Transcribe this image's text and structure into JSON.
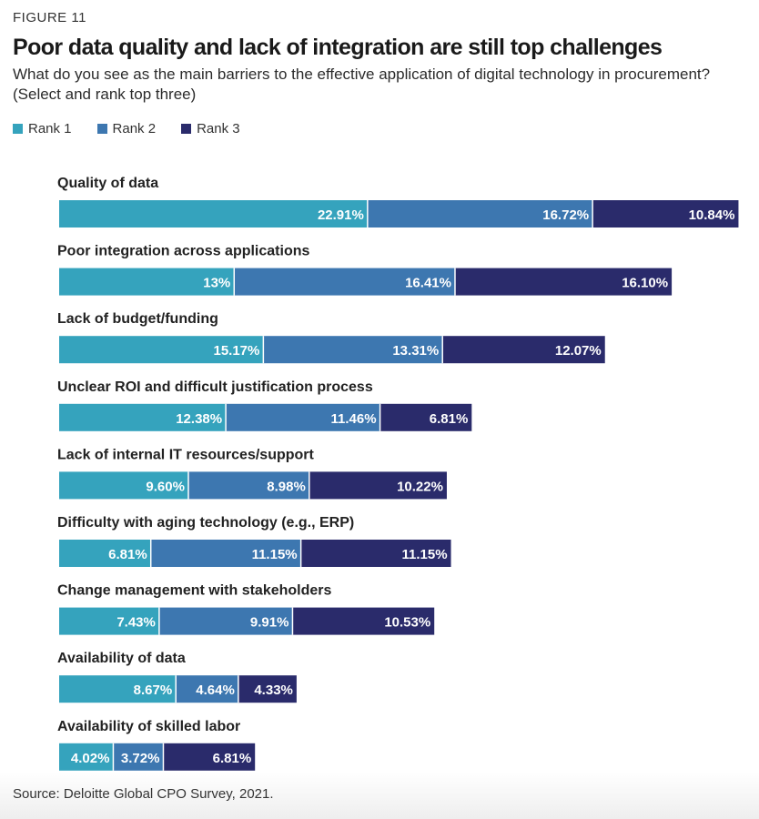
{
  "figure_label": "FIGURE 11",
  "title": "Poor data quality and lack of integration are still top challenges",
  "subtitle": "What do you see as the main barriers to the effective application of digital technology in procurement? (Select and rank top three)",
  "source": "Source: Deloitte Global CPO Survey, 2021.",
  "colors": {
    "rank1": "#35a3bd",
    "rank2": "#3d77b0",
    "rank3": "#2a2b6b"
  },
  "chart_data": {
    "type": "bar",
    "orientation": "horizontal",
    "stacked": true,
    "title": "Poor data quality and lack of integration are still top challenges",
    "xlabel": "",
    "ylabel": "",
    "legend_position": "top-left",
    "grid": false,
    "categories": [
      "Quality of data",
      "Poor integration across applications",
      "Lack of budget/funding",
      "Unclear ROI and difficult justification process",
      "Lack of internal IT resources/support",
      "Difficulty with aging technology (e.g., ERP)",
      "Change management with stakeholders",
      "Availability of data",
      "Availability of skilled labor"
    ],
    "series": [
      {
        "name": "Rank 1",
        "values": [
          22.91,
          13,
          15.17,
          12.38,
          9.6,
          6.81,
          7.43,
          8.67,
          4.02
        ],
        "labels": [
          "22.91%",
          "13%",
          "15.17%",
          "12.38%",
          "9.60%",
          "6.81%",
          "7.43%",
          "8.67%",
          "4.02%"
        ]
      },
      {
        "name": "Rank 2",
        "values": [
          16.72,
          16.41,
          13.31,
          11.46,
          8.98,
          11.15,
          9.91,
          4.64,
          3.72
        ],
        "labels": [
          "16.72%",
          "16.41%",
          "13.31%",
          "11.46%",
          "8.98%",
          "11.15%",
          "9.91%",
          "4.64%",
          "3.72%"
        ]
      },
      {
        "name": "Rank 3",
        "values": [
          10.84,
          16.1,
          12.07,
          6.81,
          10.22,
          11.15,
          10.53,
          4.33,
          6.81
        ],
        "labels": [
          "10.84%",
          "16.10%",
          "12.07%",
          "6.81%",
          "10.22%",
          "11.15%",
          "10.53%",
          "4.33%",
          "6.81%"
        ]
      }
    ]
  }
}
